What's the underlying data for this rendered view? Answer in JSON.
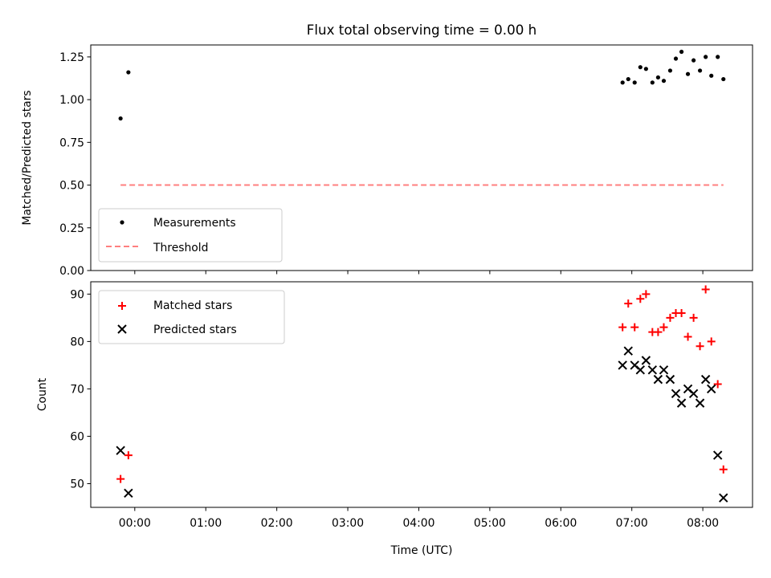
{
  "chart_data": {
    "title": "Flux total observing time = 0.00 h",
    "xlabel": "Time (UTC)",
    "x_tick_labels": [
      "00:00",
      "01:00",
      "02:00",
      "03:00",
      "04:00",
      "05:00",
      "06:00",
      "07:00",
      "08:00"
    ],
    "x_ticks_hours": [
      0,
      1,
      2,
      3,
      4,
      5,
      6,
      7,
      8
    ],
    "xlim_hours": [
      -0.62,
      8.7
    ],
    "panels": [
      {
        "type": "scatter",
        "ylabel": "Matched/Predicted stars",
        "ylim": [
          0,
          1.32
        ],
        "y_ticks": [
          0.0,
          0.25,
          0.5,
          0.75,
          1.0,
          1.25
        ],
        "y_tick_labels": [
          "0.00",
          "0.25",
          "0.50",
          "0.75",
          "1.00",
          "1.25"
        ],
        "legend_position": "lower-left",
        "series": [
          {
            "name": "Measurements",
            "marker": "dot",
            "color": "#000000",
            "x": [
              -0.2,
              -0.09,
              6.87,
              6.95,
              7.04,
              7.12,
              7.2,
              7.29,
              7.37,
              7.45,
              7.54,
              7.62,
              7.7,
              7.79,
              7.87,
              7.96,
              8.04,
              8.12,
              8.21,
              8.29
            ],
            "y": [
              0.89,
              1.16,
              1.1,
              1.12,
              1.1,
              1.19,
              1.18,
              1.1,
              1.13,
              1.11,
              1.17,
              1.24,
              1.28,
              1.15,
              1.23,
              1.17,
              1.25,
              1.14,
              1.25,
              1.12
            ]
          },
          {
            "name": "Threshold",
            "marker": "dashed-line",
            "color": "#ff7f7f",
            "x": [
              -0.2,
              8.29
            ],
            "y": [
              0.5,
              0.5
            ]
          }
        ]
      },
      {
        "type": "scatter",
        "ylabel": "Count",
        "ylim": [
          45,
          92.6
        ],
        "y_ticks": [
          50,
          60,
          70,
          80,
          90
        ],
        "y_tick_labels": [
          "50",
          "60",
          "70",
          "80",
          "90"
        ],
        "legend_position": "upper-left",
        "series": [
          {
            "name": "Matched stars",
            "marker": "plus",
            "color": "#ff0000",
            "x": [
              -0.2,
              -0.09,
              6.87,
              6.95,
              7.04,
              7.12,
              7.2,
              7.29,
              7.37,
              7.45,
              7.54,
              7.62,
              7.7,
              7.79,
              7.87,
              7.96,
              8.04,
              8.12,
              8.21,
              8.29
            ],
            "y": [
              51,
              56,
              83,
              88,
              83,
              89,
              90,
              82,
              82,
              83,
              85,
              86,
              86,
              81,
              85,
              79,
              91,
              80,
              71,
              53
            ]
          },
          {
            "name": "Predicted stars",
            "marker": "x",
            "color": "#000000",
            "x": [
              -0.2,
              -0.09,
              6.87,
              6.95,
              7.04,
              7.12,
              7.2,
              7.29,
              7.37,
              7.45,
              7.54,
              7.62,
              7.7,
              7.79,
              7.87,
              7.96,
              8.04,
              8.12,
              8.21,
              8.29
            ],
            "y": [
              57,
              48,
              75,
              78,
              75,
              74,
              76,
              74,
              72,
              74,
              72,
              69,
              67,
              70,
              69,
              67,
              72,
              70,
              56,
              47
            ]
          }
        ]
      }
    ]
  }
}
